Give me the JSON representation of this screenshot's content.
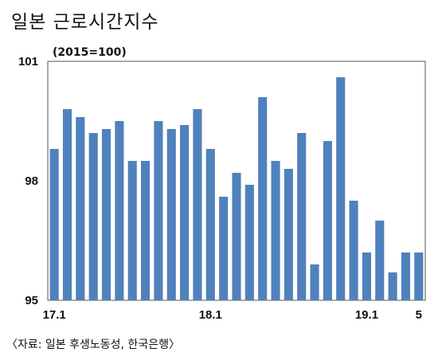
{
  "title": "일본 근로시간지수",
  "unit_label": "(2015=100)",
  "source": "〈자료: 일본 후생노동성, 한국은행〉",
  "colors": {
    "bar": "#4f81bd",
    "axis": "#555555"
  },
  "chart_data": {
    "type": "bar",
    "title": "일본 근로시간지수",
    "ylabel": "(2015=100)",
    "ylim": [
      95,
      101
    ],
    "yticks": [
      101,
      98,
      95
    ],
    "xtick_labels": [
      {
        "index": 0,
        "label": "17.1"
      },
      {
        "index": 12,
        "label": "18.1"
      },
      {
        "index": 24,
        "label": "19.1"
      },
      {
        "index": 28,
        "label": "5"
      }
    ],
    "categories": [
      "17.1",
      "17.2",
      "17.3",
      "17.4",
      "17.5",
      "17.6",
      "17.7",
      "17.8",
      "17.9",
      "17.10",
      "17.11",
      "17.12",
      "18.1",
      "18.2",
      "18.3",
      "18.4",
      "18.5",
      "18.6",
      "18.7",
      "18.8",
      "18.9",
      "18.10",
      "18.11",
      "18.12",
      "19.1",
      "19.2",
      "19.3",
      "19.4",
      "19.5"
    ],
    "values": [
      98.8,
      99.8,
      99.6,
      99.2,
      99.3,
      99.5,
      98.5,
      98.5,
      99.5,
      99.3,
      99.4,
      99.8,
      98.8,
      97.6,
      98.2,
      97.9,
      100.1,
      98.5,
      98.3,
      99.2,
      95.9,
      99.0,
      100.6,
      97.5,
      96.2,
      97.0,
      95.7,
      96.2,
      96.2
    ]
  }
}
